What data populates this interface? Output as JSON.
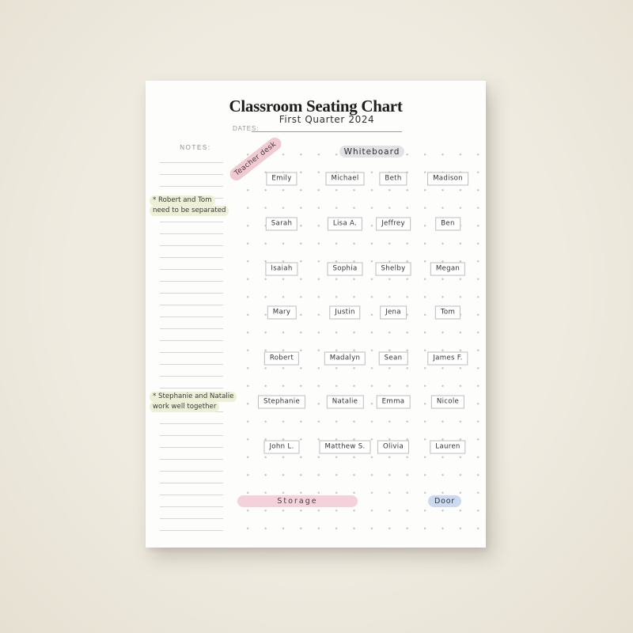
{
  "page": {
    "title": "Classroom Seating Chart",
    "dates_label": "DATES:",
    "dates_value": "First Quarter 2024"
  },
  "notes": {
    "label": "NOTES:",
    "items": [
      {
        "line1": "* Robert and Tom",
        "line2": "need to be separated"
      },
      {
        "line1": "* Stephanie and Natalie",
        "line2": "work well together"
      }
    ]
  },
  "room": {
    "teacher_desk_label": "Teacher desk",
    "whiteboard_label": "Whiteboard",
    "storage_label": "Storage",
    "door_label": "Door"
  },
  "seats": {
    "rows": [
      [
        "Emily",
        "Michael",
        "Beth",
        "Madison"
      ],
      [
        "Sarah",
        "Lisa A.",
        "Jeffrey",
        "Ben"
      ],
      [
        "Isaiah",
        "Sophia",
        "Shelby",
        "Megan"
      ],
      [
        "Mary",
        "Justin",
        "Jena",
        "Tom"
      ],
      [
        "Robert",
        "Madalyn",
        "Sean",
        "James F."
      ],
      [
        "Stephanie",
        "Natalie",
        "Emma",
        "Nicole"
      ],
      [
        "John L.",
        "Matthew S.",
        "Olivia",
        "Lauren"
      ]
    ]
  },
  "colors": {
    "background": "#ece7dc",
    "page": "#fdfdfc",
    "teacher_desk_pink": "#f1c9d1",
    "storage_pink": "#f3d2dc",
    "door_blue": "#cdd9ef",
    "whiteboard_gray": "#e2e2e5",
    "note_highlight": "#edf0d7",
    "dot_gray": "#c3c3c3",
    "ink": "#333333"
  }
}
